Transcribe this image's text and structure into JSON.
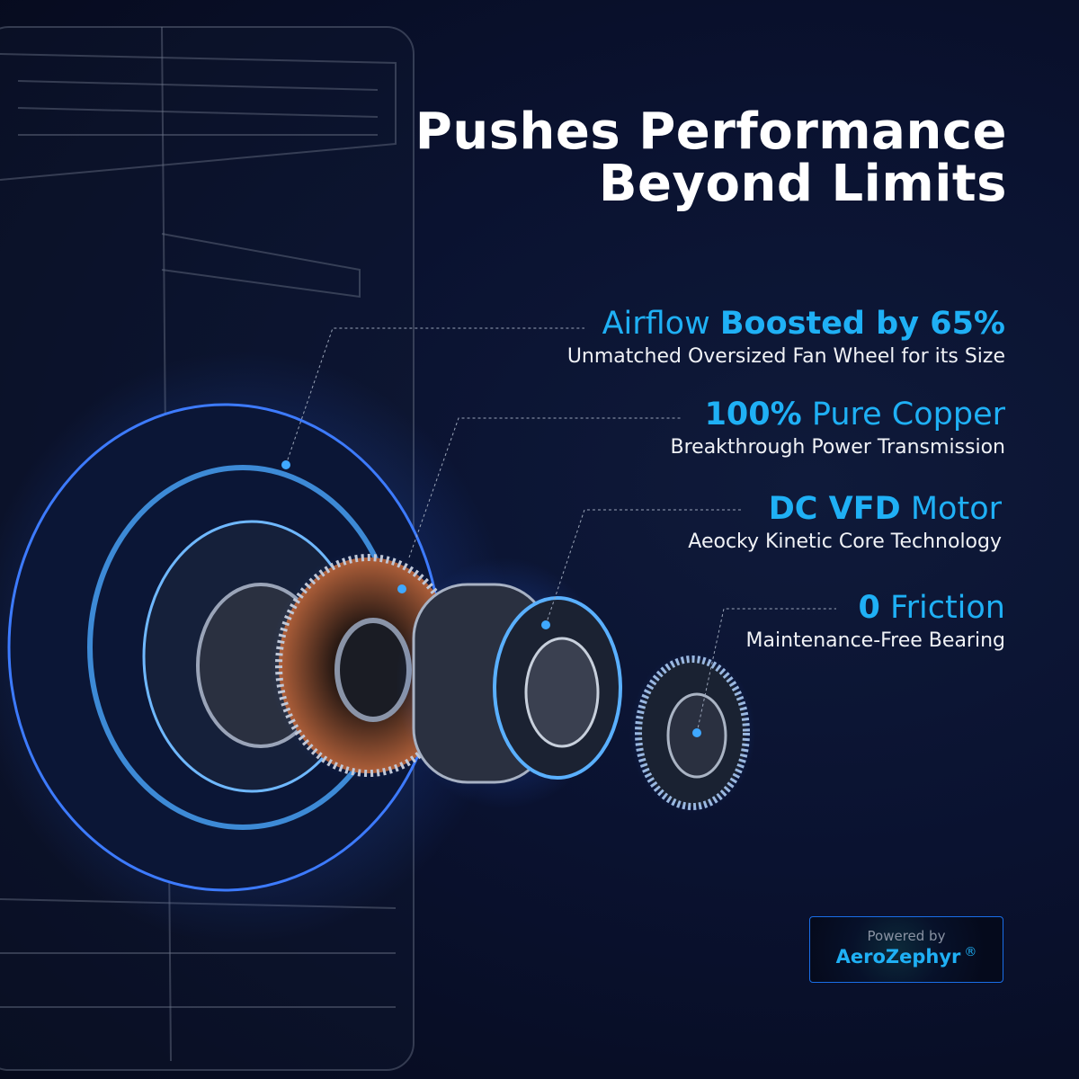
{
  "title": {
    "line1": "Pushes Performance",
    "line2": "Beyond Limits"
  },
  "accent_color": "#1fb0f5",
  "features": [
    {
      "plain": "Airflow ",
      "bold": "Boosted by 65%",
      "subtitle": "Unmatched Oversized Fan Wheel for its Size"
    },
    {
      "bold": "100%",
      "plain": " Pure Copper",
      "subtitle": "Breakthrough Power Transmission"
    },
    {
      "bold": "DC VFD",
      "plain": " Motor",
      "subtitle": "Aeocky Kinetic Core Technology"
    },
    {
      "bold": "0",
      "plain": " Friction",
      "subtitle": "Maintenance-Free Bearing"
    }
  ],
  "badge": {
    "powered_by": "Powered by",
    "brand": "AeroZephyr",
    "mark": "®"
  }
}
